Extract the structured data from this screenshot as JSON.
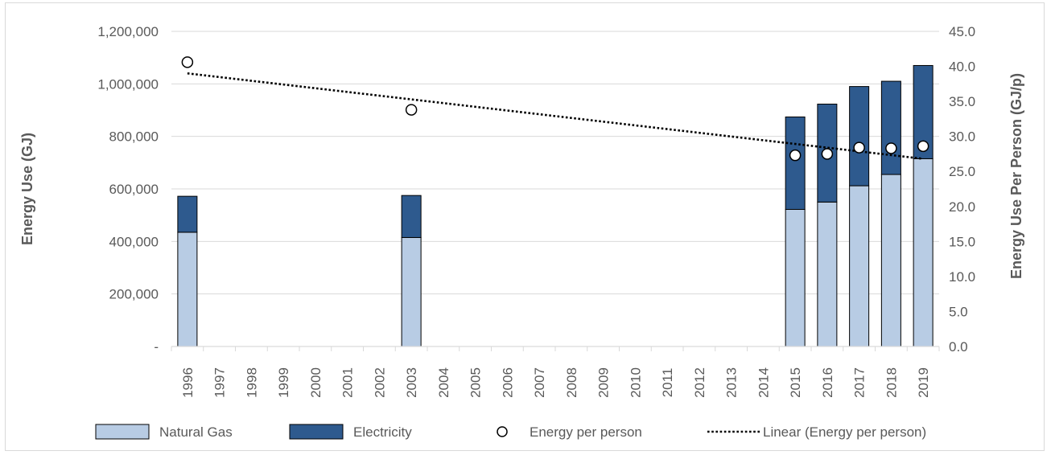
{
  "chart_data": {
    "type": "bar",
    "stacked": true,
    "categories": [
      "1996",
      "1997",
      "1998",
      "1999",
      "2000",
      "2001",
      "2002",
      "2003",
      "2004",
      "2005",
      "2006",
      "2007",
      "2008",
      "2009",
      "2010",
      "2011",
      "2012",
      "2013",
      "2014",
      "2015",
      "2016",
      "2017",
      "2018",
      "2019"
    ],
    "series": [
      {
        "name": "Natural Gas",
        "type": "bar",
        "axis": "left",
        "color": "#b8cce4",
        "values": [
          435000,
          null,
          null,
          null,
          null,
          null,
          null,
          415000,
          null,
          null,
          null,
          null,
          null,
          null,
          null,
          null,
          null,
          null,
          null,
          522000,
          550000,
          612000,
          655000,
          715000
        ]
      },
      {
        "name": "Electricity",
        "type": "bar",
        "axis": "left",
        "color": "#2e5a8e",
        "values": [
          137000,
          null,
          null,
          null,
          null,
          null,
          null,
          160000,
          null,
          null,
          null,
          null,
          null,
          null,
          null,
          null,
          null,
          null,
          null,
          352000,
          373000,
          378000,
          355000,
          355000
        ]
      },
      {
        "name": "Energy per person",
        "type": "scatter",
        "axis": "right",
        "marker": "open-circle",
        "values": [
          40.6,
          null,
          null,
          null,
          null,
          null,
          null,
          33.8,
          null,
          null,
          null,
          null,
          null,
          null,
          null,
          null,
          null,
          null,
          null,
          27.3,
          27.5,
          28.4,
          28.3,
          28.6
        ]
      },
      {
        "name": "Linear (Energy per person)",
        "type": "trendline",
        "axis": "right",
        "style": "dotted",
        "start": {
          "x": "1996",
          "y": 39.0
        },
        "end": {
          "x": "2019",
          "y": 26.8
        }
      }
    ],
    "yleft": {
      "label": "Energy Use (GJ)",
      "ylim": [
        0,
        1200000
      ],
      "ticks": [
        {
          "v": 0,
          "label": "-"
        },
        {
          "v": 200000,
          "label": "200,000"
        },
        {
          "v": 400000,
          "label": "400,000"
        },
        {
          "v": 600000,
          "label": "600,000"
        },
        {
          "v": 800000,
          "label": "800,000"
        },
        {
          "v": 1000000,
          "label": "1,000,000"
        },
        {
          "v": 1200000,
          "label": "1,200,000"
        }
      ]
    },
    "yright": {
      "label": "Energy Use Per Person (GJ/p)",
      "ylim": [
        0,
        45
      ],
      "ticks": [
        {
          "v": 0,
          "label": "0.0"
        },
        {
          "v": 5,
          "label": "5.0"
        },
        {
          "v": 10,
          "label": "10.0"
        },
        {
          "v": 15,
          "label": "15.0"
        },
        {
          "v": 20,
          "label": "20.0"
        },
        {
          "v": 25,
          "label": "25.0"
        },
        {
          "v": 30,
          "label": "30.0"
        },
        {
          "v": 35,
          "label": "35.0"
        },
        {
          "v": 40,
          "label": "40.0"
        },
        {
          "v": 45,
          "label": "45.0"
        }
      ]
    },
    "grid": true,
    "legend_position": "bottom"
  }
}
